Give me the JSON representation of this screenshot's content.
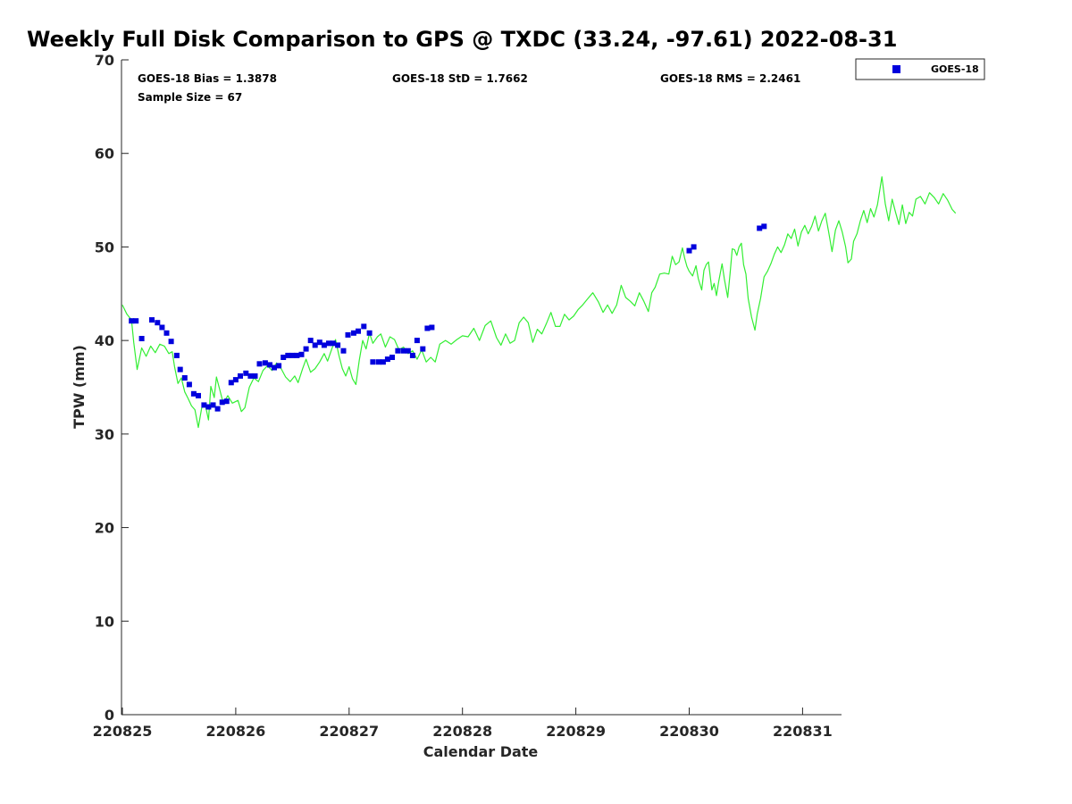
{
  "chart_data": {
    "type": "scatter",
    "title": "Weekly Full Disk Comparison to GPS @ TXDC (33.24, -97.61) 2022-08-31",
    "xlabel": "Calendar Date",
    "ylabel": "TPW (mm)",
    "x_tick_labels": [
      "220825",
      "220826",
      "220827",
      "220828",
      "220829",
      "220830",
      "220831"
    ],
    "x_range_days": [
      0,
      6.35
    ],
    "ylim": [
      0,
      70
    ],
    "y_ticks": [
      0,
      10,
      20,
      30,
      40,
      50,
      60,
      70
    ],
    "grid": false,
    "legend_position": "top-right",
    "stats": {
      "bias": "GOES-18 Bias = 1.3878",
      "std": "GOES-18 StD = 1.7662",
      "rms": "GOES-18 RMS = 2.2461",
      "sample": "Sample Size = 67"
    },
    "series": [
      {
        "name": "GOES-18",
        "kind": "scatter",
        "marker": "square",
        "color": "#0000dd",
        "points": [
          [
            0.08,
            42.1
          ],
          [
            0.12,
            42.1
          ],
          [
            0.17,
            40.2
          ],
          [
            0.26,
            42.2
          ],
          [
            0.31,
            41.9
          ],
          [
            0.35,
            41.4
          ],
          [
            0.39,
            40.8
          ],
          [
            0.43,
            39.9
          ],
          [
            0.48,
            38.4
          ],
          [
            0.51,
            36.9
          ],
          [
            0.55,
            36.0
          ],
          [
            0.59,
            35.3
          ],
          [
            0.63,
            34.3
          ],
          [
            0.67,
            34.1
          ],
          [
            0.72,
            33.1
          ],
          [
            0.76,
            32.9
          ],
          [
            0.8,
            33.1
          ],
          [
            0.84,
            32.7
          ],
          [
            0.88,
            33.4
          ],
          [
            0.92,
            33.5
          ],
          [
            0.96,
            35.5
          ],
          [
            1.0,
            35.8
          ],
          [
            1.04,
            36.2
          ],
          [
            1.09,
            36.5
          ],
          [
            1.13,
            36.2
          ],
          [
            1.17,
            36.2
          ],
          [
            1.21,
            37.5
          ],
          [
            1.26,
            37.6
          ],
          [
            1.3,
            37.4
          ],
          [
            1.34,
            37.1
          ],
          [
            1.38,
            37.3
          ],
          [
            1.42,
            38.2
          ],
          [
            1.46,
            38.4
          ],
          [
            1.5,
            38.4
          ],
          [
            1.54,
            38.4
          ],
          [
            1.58,
            38.5
          ],
          [
            1.62,
            39.1
          ],
          [
            1.66,
            40.0
          ],
          [
            1.7,
            39.5
          ],
          [
            1.74,
            39.8
          ],
          [
            1.78,
            39.5
          ],
          [
            1.82,
            39.7
          ],
          [
            1.86,
            39.7
          ],
          [
            1.9,
            39.5
          ],
          [
            1.95,
            38.9
          ],
          [
            1.99,
            40.6
          ],
          [
            2.04,
            40.8
          ],
          [
            2.08,
            41.0
          ],
          [
            2.13,
            41.5
          ],
          [
            2.18,
            40.8
          ],
          [
            2.21,
            37.7
          ],
          [
            2.26,
            37.7
          ],
          [
            2.3,
            37.7
          ],
          [
            2.34,
            38.0
          ],
          [
            2.38,
            38.2
          ],
          [
            2.43,
            38.9
          ],
          [
            2.48,
            38.9
          ],
          [
            2.52,
            38.9
          ],
          [
            2.56,
            38.4
          ],
          [
            2.6,
            40.0
          ],
          [
            2.65,
            39.1
          ],
          [
            2.69,
            41.3
          ],
          [
            2.73,
            41.4
          ],
          [
            5.0,
            49.6
          ],
          [
            5.04,
            50.0
          ],
          [
            5.62,
            52.0
          ],
          [
            5.66,
            52.2
          ]
        ]
      },
      {
        "name": "GPS",
        "kind": "line",
        "color": "#33ee33",
        "points": [
          [
            0.0,
            43.8
          ],
          [
            0.04,
            42.8
          ],
          [
            0.08,
            42.2
          ],
          [
            0.1,
            39.8
          ],
          [
            0.13,
            36.9
          ],
          [
            0.17,
            39.2
          ],
          [
            0.21,
            38.3
          ],
          [
            0.25,
            39.4
          ],
          [
            0.29,
            38.7
          ],
          [
            0.33,
            39.6
          ],
          [
            0.37,
            39.4
          ],
          [
            0.41,
            38.6
          ],
          [
            0.44,
            38.8
          ],
          [
            0.46,
            37.2
          ],
          [
            0.49,
            35.4
          ],
          [
            0.52,
            36.0
          ],
          [
            0.55,
            34.5
          ],
          [
            0.58,
            33.8
          ],
          [
            0.61,
            33.0
          ],
          [
            0.64,
            32.6
          ],
          [
            0.67,
            30.7
          ],
          [
            0.7,
            32.8
          ],
          [
            0.73,
            33.2
          ],
          [
            0.76,
            31.5
          ],
          [
            0.78,
            35.1
          ],
          [
            0.81,
            33.9
          ],
          [
            0.83,
            36.1
          ],
          [
            0.86,
            34.7
          ],
          [
            0.89,
            33.3
          ],
          [
            0.93,
            34.1
          ],
          [
            0.97,
            33.3
          ],
          [
            1.02,
            33.6
          ],
          [
            1.05,
            32.4
          ],
          [
            1.08,
            32.8
          ],
          [
            1.12,
            35.0
          ],
          [
            1.16,
            36.0
          ],
          [
            1.2,
            35.6
          ],
          [
            1.24,
            36.8
          ],
          [
            1.28,
            37.3
          ],
          [
            1.32,
            36.8
          ],
          [
            1.36,
            37.6
          ],
          [
            1.4,
            37.0
          ],
          [
            1.44,
            36.1
          ],
          [
            1.48,
            35.6
          ],
          [
            1.52,
            36.2
          ],
          [
            1.55,
            35.5
          ],
          [
            1.59,
            37.0
          ],
          [
            1.62,
            38.0
          ],
          [
            1.66,
            36.6
          ],
          [
            1.7,
            37.0
          ],
          [
            1.74,
            37.7
          ],
          [
            1.78,
            38.6
          ],
          [
            1.81,
            37.8
          ],
          [
            1.85,
            39.2
          ],
          [
            1.88,
            40.1
          ],
          [
            1.91,
            38.4
          ],
          [
            1.94,
            37.0
          ],
          [
            1.97,
            36.2
          ],
          [
            2.0,
            37.2
          ],
          [
            2.03,
            35.9
          ],
          [
            2.06,
            35.3
          ],
          [
            2.09,
            37.9
          ],
          [
            2.12,
            40.0
          ],
          [
            2.15,
            39.1
          ],
          [
            2.18,
            40.8
          ],
          [
            2.21,
            39.7
          ],
          [
            2.25,
            40.4
          ],
          [
            2.28,
            40.7
          ],
          [
            2.32,
            39.3
          ],
          [
            2.36,
            40.4
          ],
          [
            2.4,
            40.1
          ],
          [
            2.44,
            39.0
          ],
          [
            2.48,
            39.3
          ],
          [
            2.52,
            38.6
          ],
          [
            2.56,
            38.9
          ],
          [
            2.6,
            38.0
          ],
          [
            2.64,
            39.0
          ],
          [
            2.68,
            37.7
          ],
          [
            2.72,
            38.2
          ],
          [
            2.76,
            37.7
          ],
          [
            2.8,
            39.6
          ],
          [
            2.85,
            40.0
          ],
          [
            2.9,
            39.6
          ],
          [
            2.95,
            40.1
          ],
          [
            3.0,
            40.5
          ],
          [
            3.05,
            40.4
          ],
          [
            3.1,
            41.3
          ],
          [
            3.15,
            40.0
          ],
          [
            3.2,
            41.6
          ],
          [
            3.25,
            42.1
          ],
          [
            3.3,
            40.3
          ],
          [
            3.34,
            39.5
          ],
          [
            3.38,
            40.7
          ],
          [
            3.42,
            39.7
          ],
          [
            3.46,
            40.0
          ],
          [
            3.5,
            41.9
          ],
          [
            3.54,
            42.5
          ],
          [
            3.58,
            41.9
          ],
          [
            3.62,
            39.8
          ],
          [
            3.66,
            41.2
          ],
          [
            3.7,
            40.7
          ],
          [
            3.74,
            41.8
          ],
          [
            3.78,
            43.0
          ],
          [
            3.82,
            41.5
          ],
          [
            3.86,
            41.5
          ],
          [
            3.9,
            42.8
          ],
          [
            3.94,
            42.2
          ],
          [
            3.98,
            42.6
          ],
          [
            4.02,
            43.3
          ],
          [
            4.06,
            43.8
          ],
          [
            4.1,
            44.4
          ],
          [
            4.15,
            45.1
          ],
          [
            4.2,
            44.1
          ],
          [
            4.24,
            43.0
          ],
          [
            4.28,
            43.8
          ],
          [
            4.32,
            42.9
          ],
          [
            4.36,
            43.8
          ],
          [
            4.4,
            45.9
          ],
          [
            4.44,
            44.6
          ],
          [
            4.48,
            44.2
          ],
          [
            4.52,
            43.7
          ],
          [
            4.56,
            45.1
          ],
          [
            4.6,
            44.2
          ],
          [
            4.64,
            43.1
          ],
          [
            4.67,
            45.1
          ],
          [
            4.7,
            45.7
          ],
          [
            4.74,
            47.1
          ],
          [
            4.78,
            47.2
          ],
          [
            4.82,
            47.1
          ],
          [
            4.85,
            49.0
          ],
          [
            4.88,
            48.1
          ],
          [
            4.91,
            48.4
          ],
          [
            4.94,
            49.9
          ],
          [
            4.96,
            48.8
          ],
          [
            4.98,
            47.9
          ],
          [
            5.0,
            47.4
          ],
          [
            5.03,
            46.9
          ],
          [
            5.06,
            48.0
          ],
          [
            5.08,
            46.6
          ],
          [
            5.11,
            45.4
          ],
          [
            5.13,
            47.5
          ],
          [
            5.15,
            48.1
          ],
          [
            5.17,
            48.4
          ],
          [
            5.2,
            45.4
          ],
          [
            5.22,
            46.1
          ],
          [
            5.24,
            44.8
          ],
          [
            5.26,
            46.3
          ],
          [
            5.29,
            48.2
          ],
          [
            5.31,
            46.6
          ],
          [
            5.34,
            44.6
          ],
          [
            5.36,
            47.1
          ],
          [
            5.38,
            49.8
          ],
          [
            5.4,
            49.7
          ],
          [
            5.42,
            49.1
          ],
          [
            5.44,
            50.0
          ],
          [
            5.46,
            50.4
          ],
          [
            5.48,
            48.1
          ],
          [
            5.5,
            47.1
          ],
          [
            5.52,
            44.5
          ],
          [
            5.55,
            42.5
          ],
          [
            5.58,
            41.1
          ],
          [
            5.6,
            42.8
          ],
          [
            5.63,
            44.5
          ],
          [
            5.66,
            46.8
          ],
          [
            5.69,
            47.4
          ],
          [
            5.72,
            48.2
          ],
          [
            5.75,
            49.2
          ],
          [
            5.78,
            50.0
          ],
          [
            5.81,
            49.4
          ],
          [
            5.84,
            50.2
          ],
          [
            5.87,
            51.4
          ],
          [
            5.9,
            50.9
          ],
          [
            5.93,
            51.9
          ],
          [
            5.96,
            50.1
          ],
          [
            5.99,
            51.6
          ],
          [
            6.02,
            52.3
          ],
          [
            6.05,
            51.4
          ],
          [
            6.08,
            52.2
          ],
          [
            6.11,
            53.3
          ],
          [
            6.14,
            51.7
          ],
          [
            6.17,
            52.8
          ],
          [
            6.2,
            53.6
          ],
          [
            6.23,
            51.6
          ],
          [
            6.26,
            49.5
          ],
          [
            6.29,
            51.8
          ],
          [
            6.32,
            52.8
          ],
          [
            6.35,
            51.6
          ],
          [
            6.38,
            50.0
          ],
          [
            6.4,
            48.3
          ],
          [
            6.43,
            48.7
          ],
          [
            6.45,
            50.6
          ],
          [
            6.48,
            51.4
          ],
          [
            6.51,
            52.8
          ],
          [
            6.54,
            53.9
          ],
          [
            6.57,
            52.6
          ],
          [
            6.6,
            54.1
          ],
          [
            6.63,
            53.2
          ],
          [
            6.66,
            54.5
          ],
          [
            6.7,
            57.5
          ],
          [
            6.73,
            54.6
          ],
          [
            6.76,
            52.8
          ],
          [
            6.79,
            55.1
          ],
          [
            6.82,
            53.7
          ],
          [
            6.85,
            52.4
          ],
          [
            6.88,
            54.5
          ],
          [
            6.91,
            52.5
          ],
          [
            6.94,
            53.7
          ],
          [
            6.97,
            53.3
          ],
          [
            7.0,
            55.1
          ],
          [
            7.04,
            55.4
          ],
          [
            7.08,
            54.6
          ],
          [
            7.12,
            55.8
          ],
          [
            7.16,
            55.3
          ],
          [
            7.2,
            54.6
          ],
          [
            7.24,
            55.7
          ],
          [
            7.28,
            55.0
          ],
          [
            7.32,
            54.0
          ],
          [
            7.35,
            53.6
          ]
        ]
      }
    ]
  }
}
